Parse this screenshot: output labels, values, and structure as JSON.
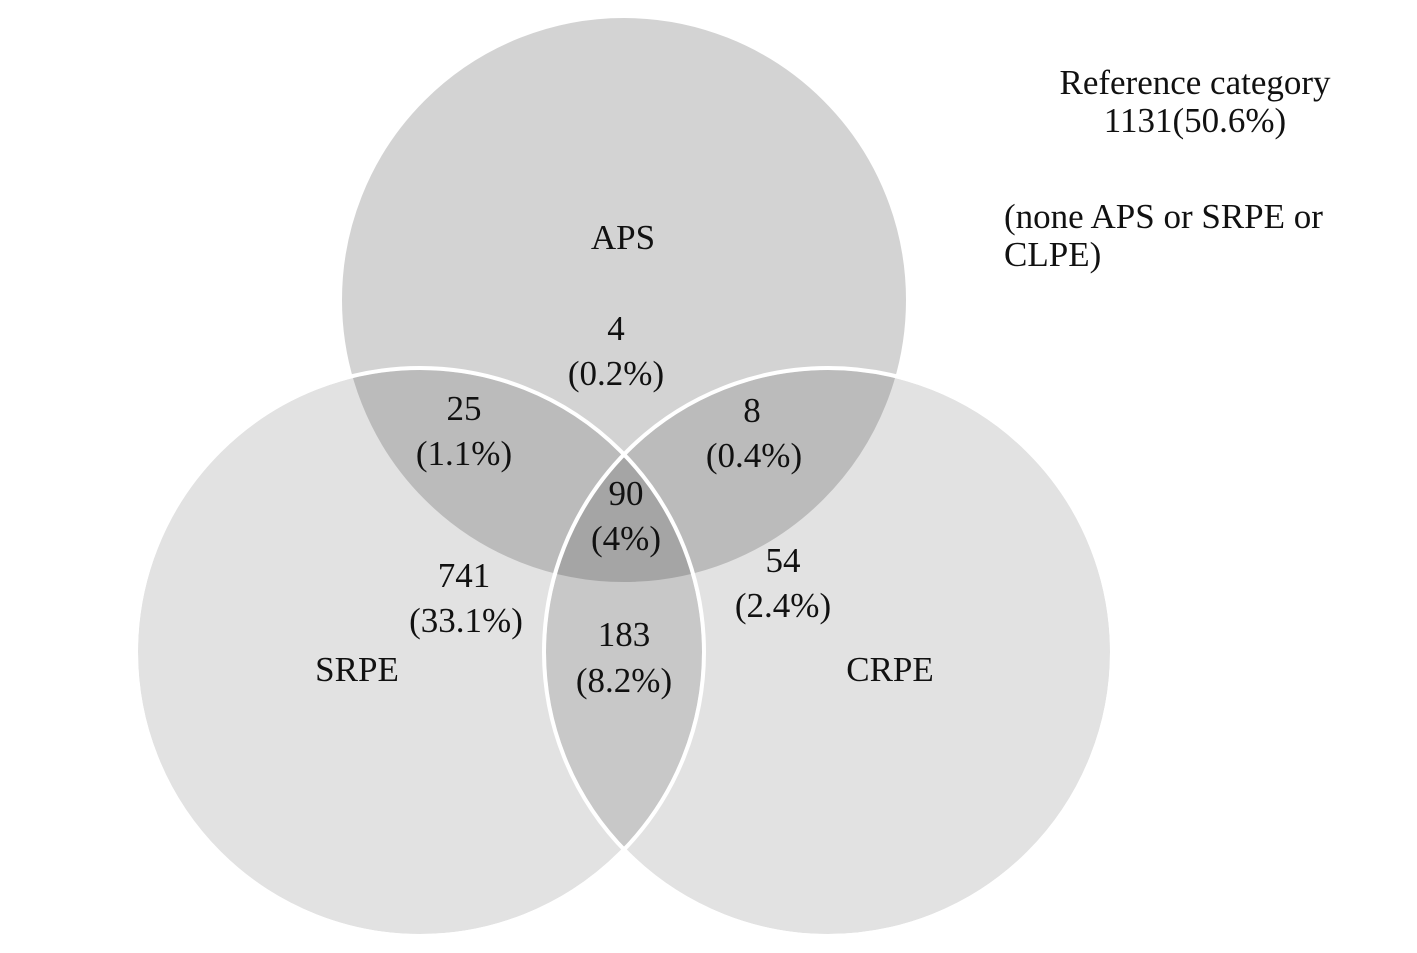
{
  "sets": [
    {
      "id": "aps",
      "label": "APS",
      "fill": "#c8c8c8"
    },
    {
      "id": "srpe",
      "label": "SRPE",
      "fill": "#e0e0e0"
    },
    {
      "id": "crpe",
      "label": "CRPE",
      "fill": "#e0e0e0"
    }
  ],
  "regions": {
    "aps_only": {
      "count": "4",
      "percent": "(0.2%)"
    },
    "aps_srpe": {
      "count": "25",
      "percent": "(1.1%)"
    },
    "aps_crpe": {
      "count": "8",
      "percent": "(0.4%)"
    },
    "all_three": {
      "count": "90",
      "percent": "(4%)"
    },
    "srpe_only": {
      "count": "741",
      "percent": "(33.1%)"
    },
    "crpe_only": {
      "count": "54",
      "percent": "(2.4%)"
    },
    "srpe_crpe": {
      "count": "183",
      "percent": "(8.2%)"
    }
  },
  "reference": {
    "title": "Reference category",
    "value": "1131(50.6%)",
    "note_line1": "(none APS or SRPE or",
    "note_line2": "CLPE)"
  },
  "colors": {
    "circle_stroke": "#ffffff",
    "text": "#111111"
  }
}
